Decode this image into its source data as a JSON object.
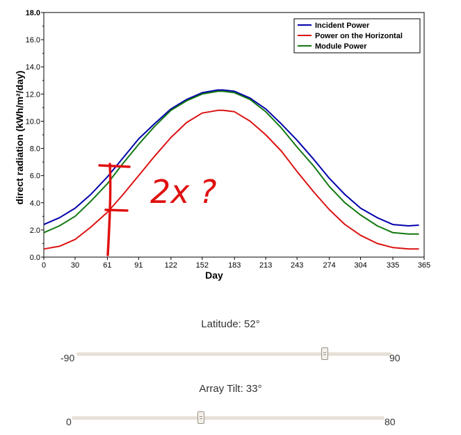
{
  "chart_data": {
    "type": "line",
    "xlabel": "Day",
    "ylabel": "direct radiation (kWh/m²/day)",
    "xlim": [
      0,
      365
    ],
    "ylim": [
      0,
      18
    ],
    "xticks": [
      0,
      30,
      61,
      91,
      122,
      152,
      183,
      213,
      243,
      274,
      304,
      335,
      365
    ],
    "yticks": [
      0,
      2,
      4,
      6,
      8,
      10,
      12,
      14,
      16,
      18
    ],
    "ytick_labels": [
      "0.0",
      "2.0",
      "4.0",
      "6.0",
      "8.0",
      "10.0",
      "12.0",
      "14.0",
      "16.0",
      "18.0"
    ],
    "legend_position": "top-right",
    "series": [
      {
        "name": "Incident Power",
        "color": "#0000aa",
        "x": [
          0,
          15,
          30,
          45,
          61,
          76,
          91,
          106,
          122,
          137,
          152,
          167,
          172,
          183,
          198,
          213,
          228,
          243,
          259,
          274,
          289,
          304,
          320,
          335,
          350,
          360
        ],
        "y": [
          2.4,
          2.9,
          3.6,
          4.6,
          5.9,
          7.3,
          8.7,
          9.8,
          10.9,
          11.6,
          12.1,
          12.3,
          12.3,
          12.2,
          11.7,
          10.9,
          9.8,
          8.6,
          7.2,
          5.8,
          4.6,
          3.6,
          2.9,
          2.4,
          2.3,
          2.35
        ]
      },
      {
        "name": "Power on the Horizontal",
        "color": "#dd1111",
        "x": [
          0,
          15,
          30,
          45,
          61,
          76,
          91,
          106,
          122,
          137,
          152,
          167,
          172,
          183,
          198,
          213,
          228,
          243,
          259,
          274,
          289,
          304,
          320,
          335,
          350,
          360
        ],
        "y": [
          0.6,
          0.8,
          1.3,
          2.2,
          3.3,
          4.6,
          6.0,
          7.4,
          8.8,
          9.9,
          10.6,
          10.8,
          10.8,
          10.7,
          10.0,
          9.0,
          7.8,
          6.3,
          4.8,
          3.5,
          2.4,
          1.6,
          1.0,
          0.7,
          0.6,
          0.6
        ]
      },
      {
        "name": "Module Power",
        "color": "#117711",
        "x": [
          0,
          15,
          30,
          45,
          61,
          76,
          91,
          106,
          122,
          137,
          152,
          167,
          172,
          183,
          198,
          213,
          228,
          243,
          259,
          274,
          289,
          304,
          320,
          335,
          350,
          360
        ],
        "y": [
          1.8,
          2.3,
          3.0,
          4.1,
          5.4,
          6.9,
          8.3,
          9.6,
          10.8,
          11.5,
          12.0,
          12.2,
          12.2,
          12.1,
          11.6,
          10.7,
          9.5,
          8.1,
          6.7,
          5.2,
          4.0,
          3.1,
          2.3,
          1.8,
          1.7,
          1.7
        ]
      }
    ],
    "annotation": {
      "text": "2x ?",
      "color": "#e01010"
    }
  },
  "sliders": [
    {
      "name": "latitude",
      "label": "Latitude: 52°",
      "min": -90,
      "max": 90,
      "value": 52,
      "min_label": "-90",
      "max_label": "90"
    },
    {
      "name": "array-tilt",
      "label": "Array Tilt: 33°",
      "min": 0,
      "max": 80,
      "value": 33,
      "min_label": "0",
      "max_label": "80"
    }
  ]
}
